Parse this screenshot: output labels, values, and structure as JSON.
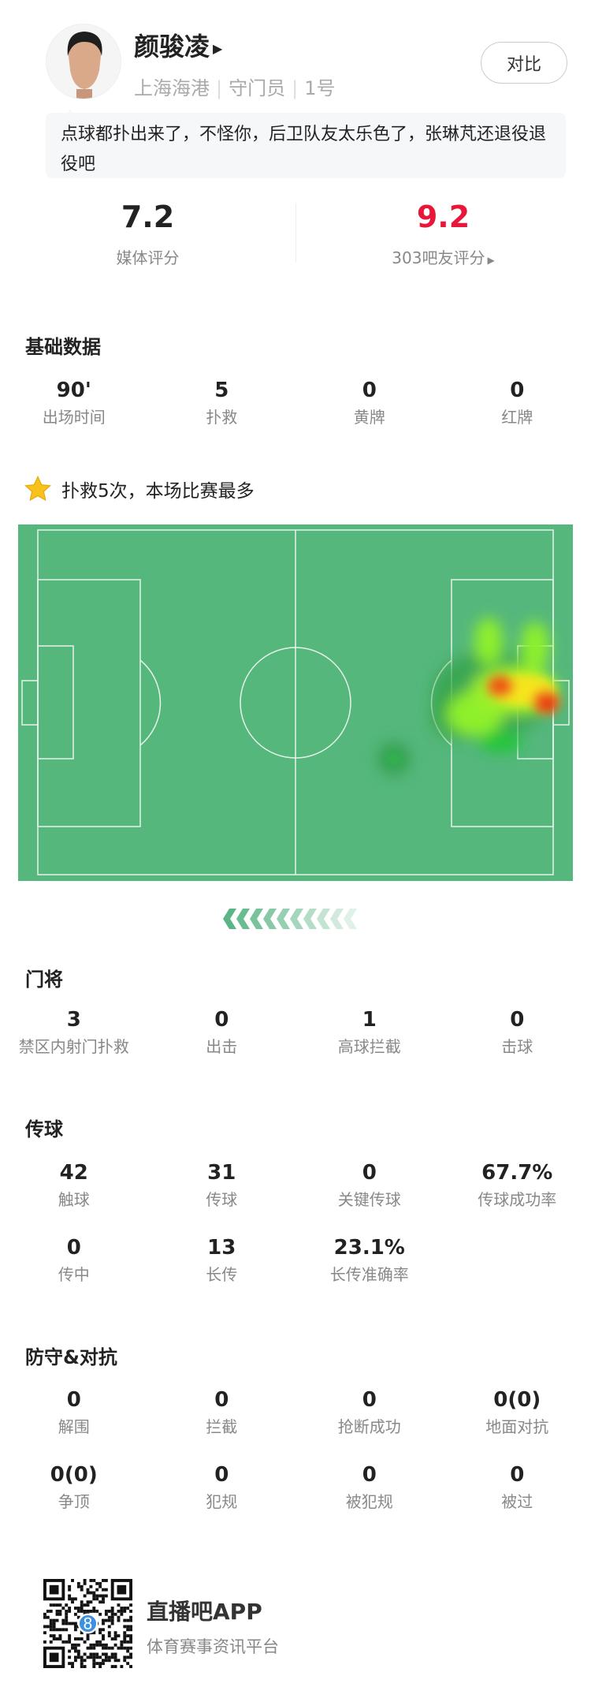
{
  "player": {
    "name": "颜骏凌",
    "team": "上海海港",
    "position": "守门员",
    "number": "1号",
    "compare_label": "对比"
  },
  "comment": "点球都扑出来了，不怪你，后卫队友太乐色了，张琳芃还退役退役吧",
  "ratings": {
    "media_value": "7.2",
    "media_label": "媒体评分",
    "fan_value": "9.2",
    "fan_label": "303吧友评分",
    "fan_color": "#e8173a"
  },
  "basic": {
    "title": "基础数据",
    "items": [
      {
        "v": "90'",
        "l": "出场时间"
      },
      {
        "v": "5",
        "l": "扑救"
      },
      {
        "v": "0",
        "l": "黄牌"
      },
      {
        "v": "0",
        "l": "红牌"
      }
    ]
  },
  "highlight": {
    "icon": "star-icon",
    "text": "扑救5次，本场比赛最多"
  },
  "heatmap": {
    "pitch_color": "#55b77c",
    "line_color": "#e6f3ea"
  },
  "goalkeeper": {
    "title": "门将",
    "items": [
      {
        "v": "3",
        "l": "禁区内射门扑救"
      },
      {
        "v": "0",
        "l": "出击"
      },
      {
        "v": "1",
        "l": "高球拦截"
      },
      {
        "v": "0",
        "l": "击球"
      }
    ]
  },
  "passing": {
    "title": "传球",
    "items": [
      {
        "v": "42",
        "l": "触球"
      },
      {
        "v": "31",
        "l": "传球"
      },
      {
        "v": "0",
        "l": "关键传球"
      },
      {
        "v": "67.7%",
        "l": "传球成功率"
      },
      {
        "v": "0",
        "l": "传中"
      },
      {
        "v": "13",
        "l": "长传"
      },
      {
        "v": "23.1%",
        "l": "长传准确率"
      }
    ]
  },
  "defense": {
    "title": "防守&对抗",
    "items": [
      {
        "v": "0",
        "l": "解围"
      },
      {
        "v": "0",
        "l": "拦截"
      },
      {
        "v": "0",
        "l": "抢断成功"
      },
      {
        "v": "0(0)",
        "l": "地面对抗"
      },
      {
        "v": "0(0)",
        "l": "争顶"
      },
      {
        "v": "0",
        "l": "犯规"
      },
      {
        "v": "0",
        "l": "被犯规"
      },
      {
        "v": "0",
        "l": "被过"
      }
    ]
  },
  "footer": {
    "app_name": "直播吧APP",
    "tagline": "体育赛事资讯平台"
  }
}
